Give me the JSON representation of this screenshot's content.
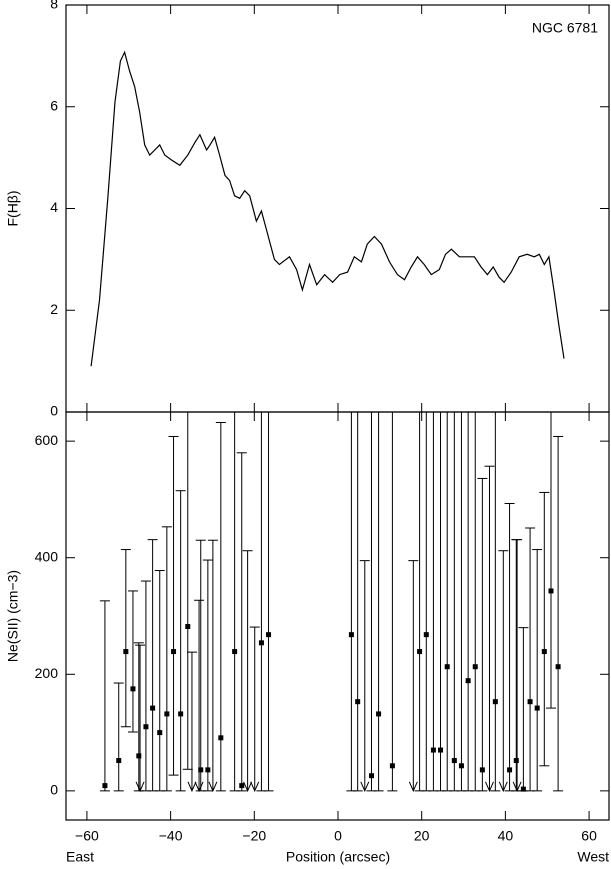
{
  "chart_data": [
    {
      "type": "line",
      "annotation": "NGC 6781",
      "ylabel": "F(Hβ)",
      "color": "#000000",
      "x": [
        -59,
        -57,
        -55,
        -53.3,
        -52,
        -51,
        -49.8,
        -48.6,
        -47.4,
        -46.2,
        -45,
        -43.8,
        -42.6,
        -41.4,
        -39.7,
        -37.8,
        -35.9,
        -34.2,
        -33,
        -31.4,
        -30.6,
        -29.5,
        -28.3,
        -27,
        -25.9,
        -24.7,
        -23.5,
        -22.3,
        -21.1,
        -19.5,
        -18.3,
        -17,
        -15.2,
        -14,
        -11.6,
        -9.9,
        -8.5,
        -6.8,
        -5.1,
        -3.2,
        -1.3,
        0.4,
        2.3,
        3.9,
        5.6,
        7,
        8.7,
        10.4,
        12.3,
        14.2,
        15.9,
        17.5,
        19,
        20.6,
        22.3,
        24.2,
        25.7,
        27.1,
        29,
        30.9,
        32.6,
        34.2,
        35.7,
        37.1,
        38.5,
        39.7,
        41.4,
        43.3,
        45.2,
        46.9,
        48.1,
        49.3,
        50.4,
        51.6,
        52.8,
        54
      ],
      "values": [
        0.9,
        2.2,
        4.2,
        6.1,
        6.9,
        7.07,
        6.7,
        6.4,
        5.9,
        5.25,
        5.05,
        5.15,
        5.25,
        5.05,
        4.95,
        4.85,
        5.05,
        5.3,
        5.45,
        5.15,
        5.25,
        5.4,
        5.05,
        4.65,
        4.55,
        4.25,
        4.2,
        4.35,
        4.25,
        3.75,
        3.95,
        3.55,
        3.0,
        2.9,
        3.05,
        2.8,
        2.4,
        2.9,
        2.5,
        2.7,
        2.55,
        2.7,
        2.75,
        3.05,
        2.95,
        3.3,
        3.45,
        3.3,
        2.95,
        2.7,
        2.6,
        2.85,
        3.05,
        2.9,
        2.7,
        2.8,
        3.1,
        3.2,
        3.05,
        3.05,
        3.05,
        2.85,
        2.7,
        2.85,
        2.65,
        2.55,
        2.75,
        3.05,
        3.1,
        3.05,
        3.1,
        2.9,
        3.05,
        2.4,
        1.7,
        1.05
      ],
      "xlim": [
        -65,
        65
      ],
      "xticks": [
        -60,
        -40,
        -20,
        0,
        20,
        40,
        60
      ],
      "ylim": [
        0,
        8
      ],
      "yticks": [
        0,
        2,
        4,
        6,
        8
      ]
    },
    {
      "type": "errorbar",
      "xlabel": "Position (arcsec)",
      "ylabel": "Ne(SII) (cm−3)",
      "left_label": "East",
      "right_label": "West",
      "color": "#000000",
      "x": [
        -55.7,
        -52.4,
        -50.7,
        -49,
        -47.6,
        -45.9,
        -44.3,
        -42.6,
        -40.9,
        -39.3,
        -37.6,
        -35.9,
        -32.8,
        -31.1,
        -28,
        -24.7,
        -23,
        -18.3,
        -16.6,
        3.2,
        4.7,
        8,
        9.7,
        13,
        19.5,
        21.1,
        22.8,
        24.5,
        26.1,
        27.8,
        29.5,
        31.1,
        32.8,
        34.5,
        37.6,
        41,
        42.6,
        44.3,
        45.9,
        47.6,
        49.3,
        50.9,
        52.6
      ],
      "values": [
        9,
        52,
        239,
        175,
        60,
        110,
        142,
        100,
        132,
        239,
        132,
        282,
        36,
        36,
        91,
        239,
        9,
        254,
        268,
        268,
        153,
        26,
        132,
        43,
        239,
        268,
        70,
        70,
        213,
        52,
        43,
        189,
        213,
        36,
        153,
        36,
        52,
        3,
        153,
        142,
        239,
        343,
        213
      ],
      "upper": [
        326,
        185,
        414,
        343,
        254,
        360,
        431,
        378,
        453,
        608,
        515,
        650,
        430,
        396,
        632,
        650,
        580,
        650,
        650,
        650,
        650,
        650,
        650,
        650,
        650,
        650,
        650,
        650,
        650,
        650,
        650,
        650,
        650,
        536,
        650,
        493,
        431,
        280,
        451,
        414,
        512,
        650,
        608
      ],
      "lower": [
        0,
        0,
        110,
        101,
        0,
        0,
        0,
        0,
        0,
        27,
        0,
        37,
        0,
        0,
        0,
        0,
        0,
        0,
        0,
        0,
        0,
        0,
        0,
        0,
        0,
        0,
        0,
        0,
        0,
        0,
        0,
        0,
        0,
        0,
        0,
        0,
        0,
        0,
        0,
        0,
        43,
        142,
        0
      ],
      "limits_x": [
        -47.3,
        -34.9,
        -33.2,
        -29.9,
        -21.6,
        -19.9,
        6.4,
        18,
        36.2,
        39.5,
        42.8
      ],
      "limits_upper": [
        250,
        238,
        327,
        430,
        412,
        281,
        395,
        395,
        557,
        412,
        431
      ],
      "xlim": [
        -65,
        65
      ],
      "xticks": [
        {
          "value": -60,
          "label": "−60"
        },
        {
          "value": -40,
          "label": "−40"
        },
        {
          "value": -20,
          "label": "−20"
        },
        0,
        20,
        40,
        60
      ],
      "ylim": [
        -50,
        650
      ],
      "yticks": [
        0,
        200,
        400,
        600
      ]
    }
  ]
}
